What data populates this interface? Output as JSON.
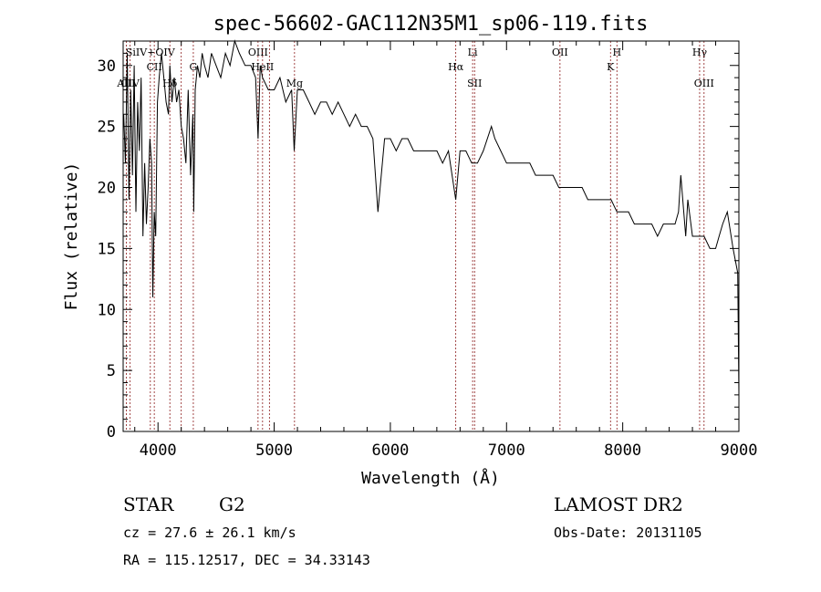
{
  "chart_data": {
    "type": "line",
    "title": "spec-56602-GAC112N35M1_sp06-119.fits",
    "xlabel": "Wavelength (Å)",
    "ylabel": "Flux (relative)",
    "xlim": [
      3700,
      9000
    ],
    "ylim": [
      0,
      32
    ],
    "x_ticks": [
      4000,
      5000,
      6000,
      7000,
      8000,
      9000
    ],
    "y_ticks": [
      0,
      5,
      10,
      15,
      20,
      25,
      30
    ],
    "grid": false,
    "line_color": "#000000",
    "marker_color": "#8b1a1a",
    "series": [
      {
        "x": [
          3705,
          3720,
          3735,
          3750,
          3765,
          3780,
          3795,
          3810,
          3825,
          3840,
          3855,
          3870,
          3885,
          3900,
          3915,
          3930,
          3945,
          3955,
          3968,
          3980,
          3995,
          4010,
          4030,
          4050,
          4070,
          4090,
          4102,
          4120,
          4140,
          4160,
          4180,
          4200,
          4220,
          4240,
          4260,
          4280,
          4300,
          4308,
          4320,
          4340,
          4360,
          4380,
          4400,
          4430,
          4460,
          4500,
          4540,
          4580,
          4620,
          4660,
          4700,
          4750,
          4800,
          4840,
          4861,
          4880,
          4900,
          4950,
          5000,
          5050,
          5100,
          5150,
          5172,
          5200,
          5250,
          5300,
          5350,
          5400,
          5450,
          5500,
          5550,
          5600,
          5650,
          5700,
          5750,
          5800,
          5850,
          5893,
          5950,
          6000,
          6050,
          6100,
          6150,
          6200,
          6250,
          6300,
          6350,
          6400,
          6450,
          6500,
          6563,
          6600,
          6650,
          6700,
          6750,
          6800,
          6870,
          6900,
          6950,
          7000,
          7050,
          7100,
          7150,
          7200,
          7250,
          7300,
          7350,
          7400,
          7450,
          7500,
          7550,
          7600,
          7650,
          7700,
          7750,
          7800,
          7850,
          7900,
          7950,
          8000,
          8050,
          8100,
          8150,
          8200,
          8250,
          8300,
          8350,
          8400,
          8450,
          8480,
          8500,
          8542,
          8560,
          8600,
          8662,
          8700,
          8750,
          8800,
          8830,
          8860,
          8900,
          8950,
          8990,
          9000
        ],
        "y": [
          26,
          22,
          31,
          19,
          28,
          21,
          30,
          18,
          27,
          23,
          29,
          16,
          22,
          17,
          20,
          24,
          22,
          11,
          18,
          16,
          27,
          29,
          31,
          29,
          27,
          26,
          30,
          27,
          29,
          27,
          28,
          25,
          24,
          22,
          28,
          21,
          26,
          18,
          28,
          30,
          29,
          31,
          30,
          29,
          31,
          30,
          29,
          31,
          30,
          32,
          31,
          30,
          30,
          29,
          24,
          30,
          29,
          28,
          28,
          29,
          27,
          28,
          23,
          28,
          28,
          27,
          26,
          27,
          27,
          26,
          27,
          26,
          25,
          26,
          25,
          25,
          24,
          18,
          24,
          24,
          23,
          24,
          24,
          23,
          23,
          23,
          23,
          23,
          22,
          23,
          19,
          23,
          23,
          22,
          22,
          23,
          25,
          24,
          23,
          22,
          22,
          22,
          22,
          22,
          21,
          21,
          21,
          21,
          20,
          20,
          20,
          20,
          20,
          19,
          19,
          19,
          19,
          19,
          18,
          18,
          18,
          17,
          17,
          17,
          17,
          16,
          17,
          17,
          17,
          18,
          21,
          16,
          19,
          16,
          16,
          16,
          15,
          15,
          16,
          17,
          18,
          15,
          13,
          3
        ]
      }
    ],
    "line_markers": [
      {
        "x": 3727,
        "label": "AlII",
        "row": 2
      },
      {
        "x": 3760,
        "label": "CIV",
        "row": 2
      },
      {
        "x": 3934,
        "label": "SiIV+OIV",
        "row": 0
      },
      {
        "x": 3968,
        "label": "CII",
        "row": 1
      },
      {
        "x": 4102,
        "label": "Hδ",
        "row": 2
      },
      {
        "x": 4200,
        "label": "",
        "row": 0
      },
      {
        "x": 4304,
        "label": "G",
        "row": 1
      },
      {
        "x": 4861,
        "label": "OIII",
        "row": 0
      },
      {
        "x": 4900,
        "label": "HeII",
        "row": 1
      },
      {
        "x": 4959,
        "label": "",
        "row": 0
      },
      {
        "x": 5175,
        "label": "Mg",
        "row": 2
      },
      {
        "x": 6563,
        "label": "Hα",
        "row": 1
      },
      {
        "x": 6708,
        "label": "Li",
        "row": 0
      },
      {
        "x": 6725,
        "label": "SII",
        "row": 2
      },
      {
        "x": 7460,
        "label": "OII",
        "row": 0
      },
      {
        "x": 7895,
        "label": "K",
        "row": 1
      },
      {
        "x": 7950,
        "label": "H",
        "row": 0
      },
      {
        "x": 8662,
        "label": "Hγ",
        "row": 0
      },
      {
        "x": 8700,
        "label": "OIII",
        "row": 2
      }
    ]
  },
  "info": {
    "object_class": "STAR",
    "subclass": "G2",
    "survey": "LAMOST DR2",
    "cz": "cz = 27.6 ± 26.1 km/s",
    "obs_date": "Obs-Date: 20131105",
    "coords": "RA = 115.12517, DEC =  34.33143"
  }
}
